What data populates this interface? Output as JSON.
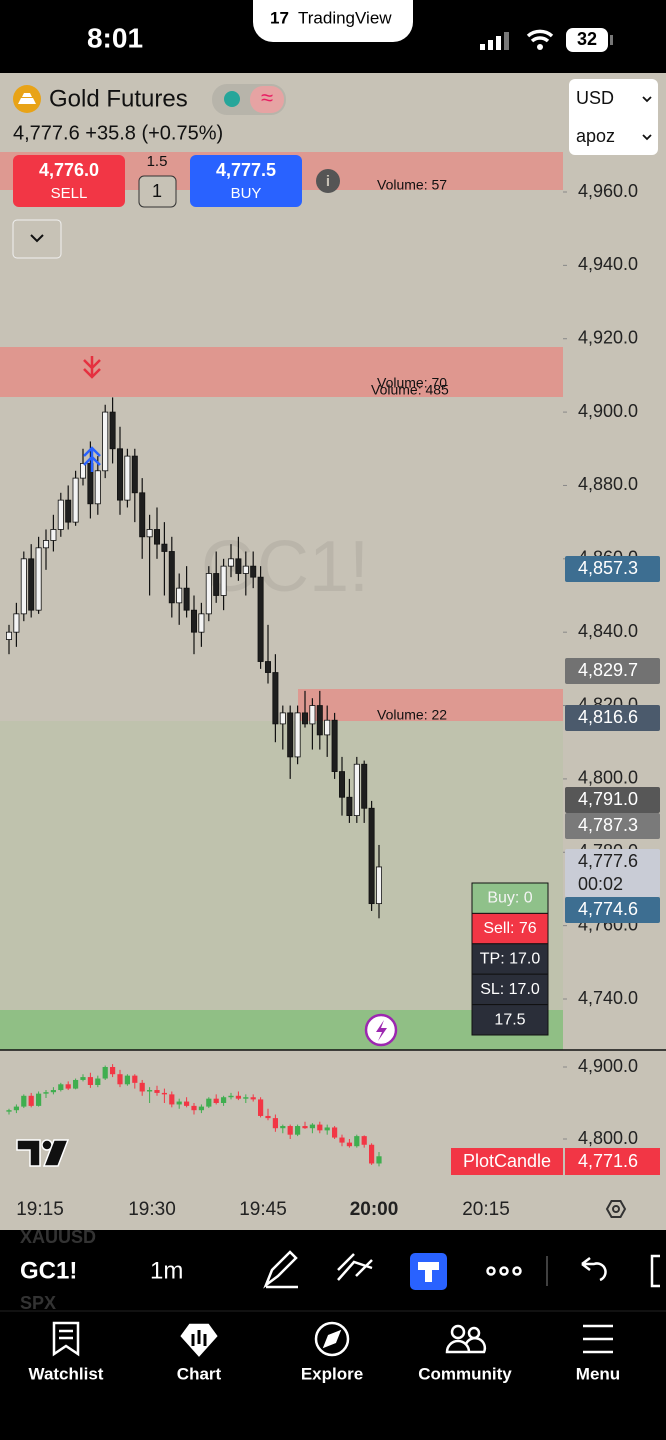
{
  "status_bar": {
    "time": "8:01",
    "app": "TradingView",
    "battery": "32"
  },
  "header": {
    "symbol": "Gold Futures",
    "quote": "4,777.6 +35.8 (+0.75%)"
  },
  "trade_panel": {
    "sell_price": "4,776.0",
    "sell_label": "SELL",
    "spread": "1.5",
    "quantity": "1",
    "buy_price": "4,777.5",
    "buy_label": "BUY"
  },
  "selectors": [
    "USD",
    "apoz"
  ],
  "zones": [
    "Volume: 57",
    "Volume: 70",
    "Volume: 485",
    "Volume: 22"
  ],
  "watermark": "GC1!",
  "price_axis": {
    "ticks": [
      {
        "value": 4960,
        "label": "4,960.0"
      },
      {
        "value": 4940,
        "label": "4,940.0"
      },
      {
        "value": 4920,
        "label": "4,920.0"
      },
      {
        "value": 4900,
        "label": "4,900.0"
      },
      {
        "value": 4880,
        "label": "4,880.0"
      },
      {
        "value": 4860,
        "label": "4,860.0"
      },
      {
        "value": 4840,
        "label": "4,840.0"
      },
      {
        "value": 4820,
        "label": "4,820.0"
      },
      {
        "value": 4800,
        "label": "4,800.0"
      },
      {
        "value": 4780,
        "label": "4,780.0"
      },
      {
        "value": 4760,
        "label": "4,760.0"
      },
      {
        "value": 4740,
        "label": "4,740.0"
      }
    ]
  },
  "price_tags": [
    {
      "text": "4,857.3",
      "color": "#3d6e91"
    },
    {
      "text": "4,829.7",
      "color": "#727272"
    },
    {
      "text": "4,816.6",
      "color": "#4b5a6c"
    },
    {
      "text": "4,791.0",
      "color": "#575757"
    },
    {
      "text": "4,787.3",
      "color": "#7a7a7a"
    },
    {
      "text": "4,777.6",
      "sub": "00:02",
      "color": "#c9ccd6"
    },
    {
      "text": "4,774.6",
      "color": "#3d6e91"
    }
  ],
  "order_panel": [
    "Buy: 0",
    "Sell: 76",
    "TP: 17.0",
    "SL: 17.0",
    "17.5"
  ],
  "candles": [
    [
      4838,
      4842,
      4834,
      4840
    ],
    [
      4840,
      4848,
      4836,
      4845
    ],
    [
      4845,
      4862,
      4843,
      4860
    ],
    [
      4860,
      4864,
      4844,
      4846
    ],
    [
      4846,
      4866,
      4845,
      4863
    ],
    [
      4863,
      4868,
      4857,
      4865
    ],
    [
      4865,
      4872,
      4862,
      4868
    ],
    [
      4868,
      4878,
      4866,
      4876
    ],
    [
      4876,
      4880,
      4868,
      4870
    ],
    [
      4870,
      4884,
      4869,
      4882
    ],
    [
      4882,
      4890,
      4880,
      4886
    ],
    [
      4886,
      4892,
      4871,
      4875
    ],
    [
      4875,
      4888,
      4872,
      4884
    ],
    [
      4884,
      4902,
      4882,
      4900
    ],
    [
      4900,
      4904,
      4886,
      4890
    ],
    [
      4890,
      4896,
      4872,
      4876
    ],
    [
      4876,
      4890,
      4874,
      4888
    ],
    [
      4888,
      4890,
      4870,
      4878
    ],
    [
      4878,
      4882,
      4860,
      4866
    ],
    [
      4866,
      4872,
      4850,
      4868
    ],
    [
      4868,
      4874,
      4860,
      4864
    ],
    [
      4864,
      4870,
      4850,
      4862
    ],
    [
      4862,
      4866,
      4844,
      4848
    ],
    [
      4848,
      4856,
      4842,
      4852
    ],
    [
      4852,
      4858,
      4844,
      4846
    ],
    [
      4846,
      4850,
      4834,
      4840
    ],
    [
      4840,
      4848,
      4836,
      4845
    ],
    [
      4845,
      4858,
      4843,
      4856
    ],
    [
      4856,
      4862,
      4848,
      4850
    ],
    [
      4850,
      4860,
      4846,
      4858
    ],
    [
      4858,
      4864,
      4855,
      4860
    ],
    [
      4860,
      4866,
      4854,
      4856
    ],
    [
      4856,
      4862,
      4850,
      4858
    ],
    [
      4858,
      4862,
      4852,
      4855
    ],
    [
      4855,
      4858,
      4830,
      4832
    ],
    [
      4832,
      4842,
      4826,
      4829
    ],
    [
      4829,
      4834,
      4810,
      4815
    ],
    [
      4815,
      4820,
      4808,
      4818
    ],
    [
      4818,
      4820,
      4800,
      4806
    ],
    [
      4806,
      4820,
      4804,
      4818
    ],
    [
      4818,
      4824,
      4814,
      4815
    ],
    [
      4815,
      4822,
      4808,
      4820
    ],
    [
      4820,
      4824,
      4808,
      4812
    ],
    [
      4812,
      4820,
      4806,
      4816
    ],
    [
      4816,
      4818,
      4800,
      4802
    ],
    [
      4802,
      4806,
      4790,
      4795
    ],
    [
      4795,
      4800,
      4788,
      4790
    ],
    [
      4790,
      4806,
      4788,
      4804
    ],
    [
      4804,
      4805,
      4788,
      4792
    ],
    [
      4792,
      4794,
      4764,
      4766
    ],
    [
      4766,
      4782,
      4762,
      4776
    ]
  ],
  "indicator": {
    "name": "PlotCandle",
    "value": "4,771.6",
    "ticks": [
      {
        "value": 4900,
        "label": "4,900.0"
      },
      {
        "value": 4800,
        "label": "4,800.0"
      }
    ]
  },
  "time_axis": [
    "19:15",
    "19:30",
    "19:45",
    "20:00",
    "20:15"
  ],
  "toolbar": {
    "symbol": "GC1!",
    "interval": "1m",
    "ghost": [
      "XAUUSD",
      "SPX"
    ]
  },
  "nav": [
    "Watchlist",
    "Chart",
    "Explore",
    "Community",
    "Menu"
  ]
}
